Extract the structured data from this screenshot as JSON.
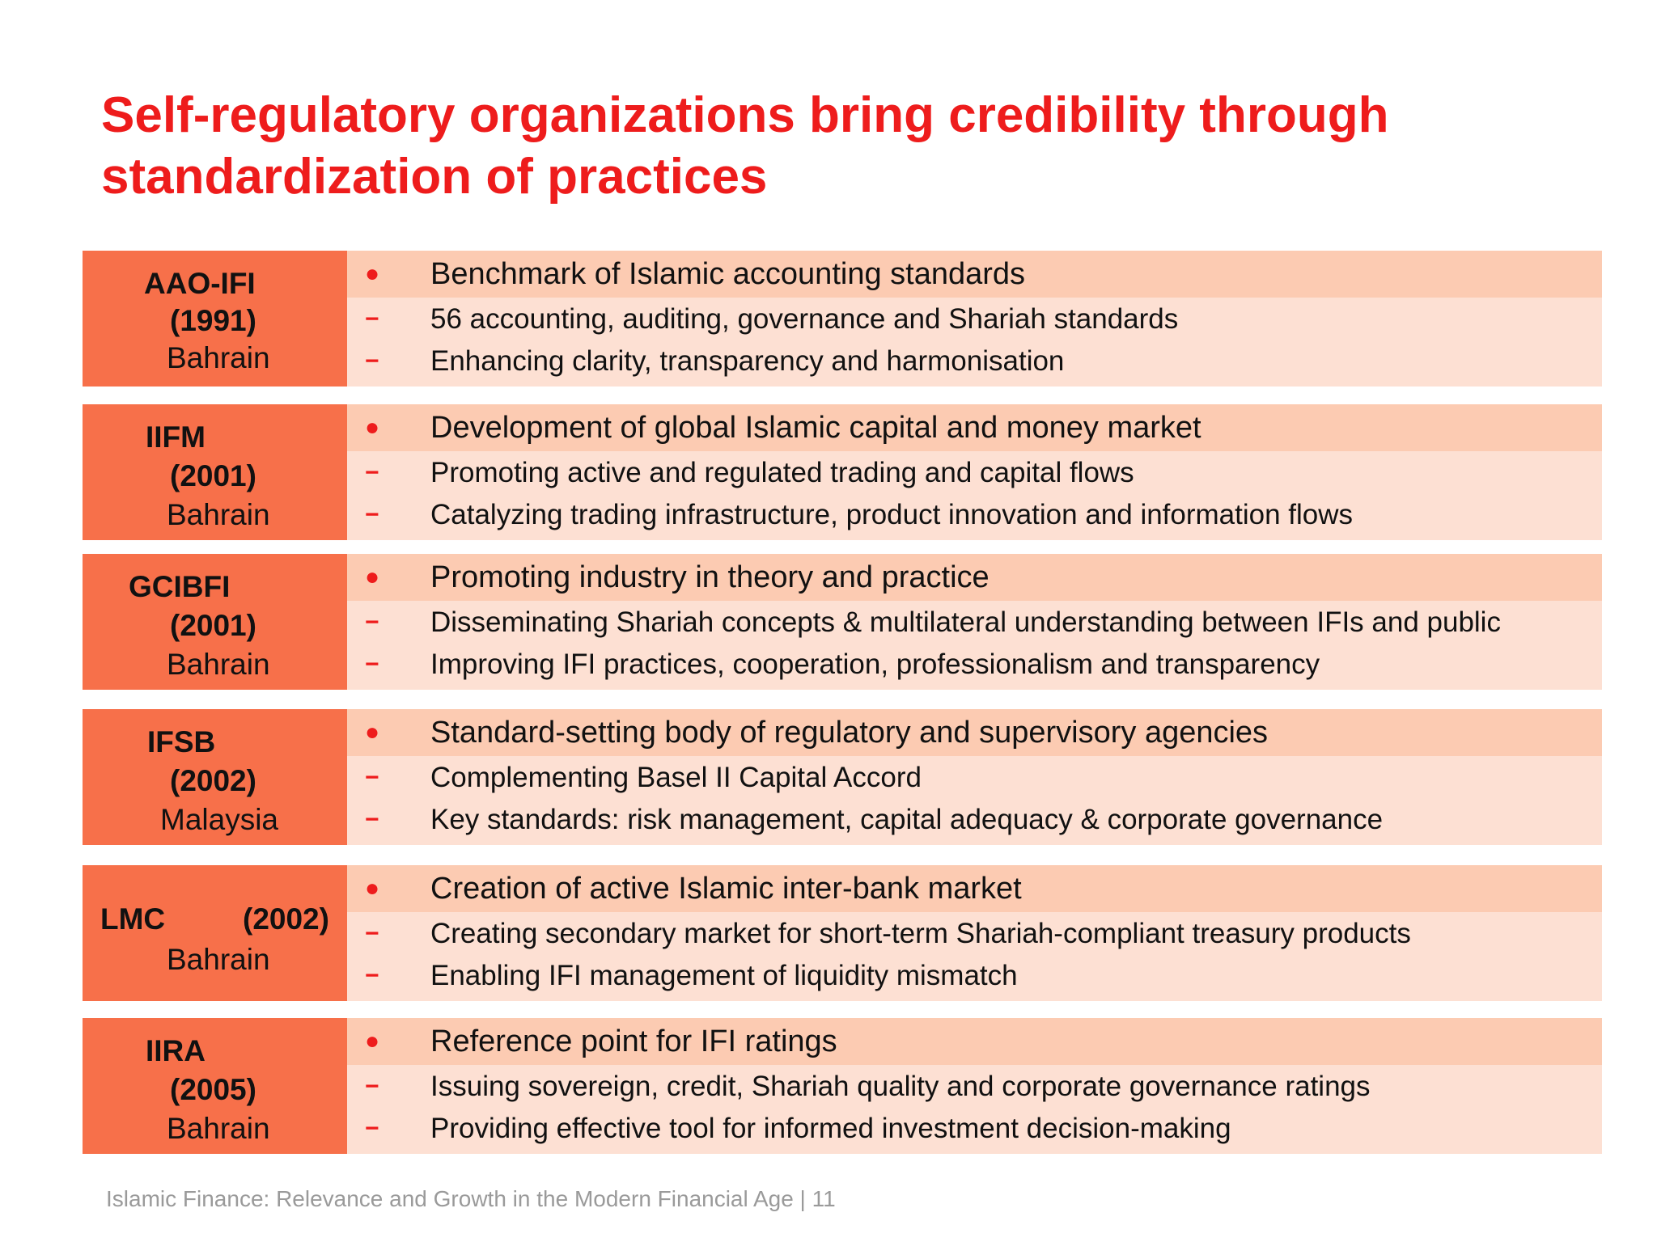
{
  "title": {
    "line1": "Self-regulatory organizations bring credibility through",
    "line2": "standardization of practices"
  },
  "organizations": [
    {
      "acronym": "AAO-IFI",
      "year": "(1991)",
      "location": "Bahrain",
      "bullet": "Benchmark of Islamic accounting standards",
      "subs": [
        "56 accounting, auditing, governance and Shariah standards",
        "Enhancing clarity, transparency and harmonisation"
      ]
    },
    {
      "acronym": "IIFM",
      "year": "(2001)",
      "location": "Bahrain",
      "bullet": "Development of global Islamic capital and money market",
      "subs": [
        "Promoting active and regulated trading and capital flows",
        "Catalyzing trading infrastructure, product innovation and information flows"
      ]
    },
    {
      "acronym": "GCIBFI",
      "year": "(2001)",
      "location": "Bahrain",
      "bullet": "Promoting industry in theory and practice",
      "subs": [
        "Disseminating Shariah concepts & multilateral understanding between IFIs and public",
        "Improving IFI practices, cooperation, professionalism and transparency"
      ]
    },
    {
      "acronym": "IFSB",
      "year": "(2002)",
      "location": "Malaysia",
      "bullet": "Standard-setting body of regulatory and supervisory agencies",
      "subs": [
        "Complementing Basel II Capital Accord",
        "Key standards: risk management, capital adequacy & corporate governance"
      ]
    },
    {
      "acronym": "LMC",
      "year": "(2002)",
      "location": "Bahrain",
      "bullet": "Creation of active Islamic inter-bank market",
      "subs": [
        "Creating secondary market for short-term Shariah-compliant treasury products",
        "Enabling IFI management of liquidity mismatch"
      ]
    },
    {
      "acronym": "IIRA",
      "year": "(2005)",
      "location": "Bahrain",
      "bullet": "Reference point for IFI ratings",
      "subs": [
        "Issuing sovereign, credit, Shariah quality and corporate governance ratings",
        "Providing effective tool for informed investment decision-making"
      ]
    }
  ],
  "markers": {
    "bullet": "●",
    "dash": "−"
  },
  "footer": "Islamic Finance: Relevance and Growth in the Modern Financial Age | 11",
  "colors": {
    "title": "#ee1c1c",
    "org_box": "#f7704a",
    "bullet_band": "#fccbb2",
    "detail_band": "#fde0d3",
    "footer": "#9a9a9a"
  }
}
